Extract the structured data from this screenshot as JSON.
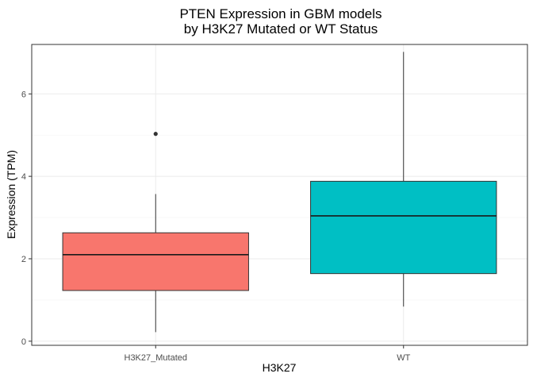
{
  "chart_data": {
    "type": "boxplot",
    "title": "PTEN Expression in GBM models",
    "subtitle": "by H3K27 Mutated or WT Status",
    "xlabel": "H3K27",
    "ylabel": "Expression (TPM)",
    "categories": [
      "H3K27_Mutated",
      "WT"
    ],
    "ylim": [
      -0.1,
      7.2
    ],
    "yticks": [
      0,
      2,
      4,
      6
    ],
    "grid": true,
    "legend": "none",
    "boxes": [
      {
        "category": "H3K27_Mutated",
        "min": 0.22,
        "q1": 1.23,
        "median": 2.1,
        "q3": 2.63,
        "max": 3.57,
        "outliers": [
          5.03
        ],
        "color": "#F8766D"
      },
      {
        "category": "WT",
        "min": 0.84,
        "q1": 1.64,
        "median": 3.04,
        "q3": 3.88,
        "max": 7.02,
        "outliers": [],
        "color": "#00BFC4"
      }
    ]
  },
  "colors": {
    "panel_border": "#333333",
    "grid": "#ebebeb",
    "background": "#ffffff"
  }
}
